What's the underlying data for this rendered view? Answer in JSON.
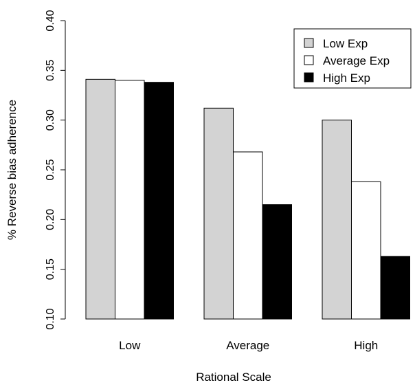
{
  "chart_data": {
    "type": "bar",
    "xlabel": "Rational Scale",
    "ylabel": "% Reverse bias adherence",
    "ylim": [
      0.1,
      0.4
    ],
    "yticks": [
      "0.10",
      "0.15",
      "0.20",
      "0.25",
      "0.30",
      "0.35",
      "0.40"
    ],
    "grid": false,
    "legend_position": "top-right",
    "categories": [
      "Low",
      "Average",
      "High"
    ],
    "series": [
      {
        "name": "Low Exp",
        "color": "#d3d3d3",
        "values": [
          0.341,
          0.312,
          0.3
        ]
      },
      {
        "name": "Average Exp",
        "color": "#ffffff",
        "values": [
          0.34,
          0.268,
          0.238
        ]
      },
      {
        "name": "High Exp",
        "color": "#000000",
        "values": [
          0.338,
          0.215,
          0.163
        ]
      }
    ]
  }
}
